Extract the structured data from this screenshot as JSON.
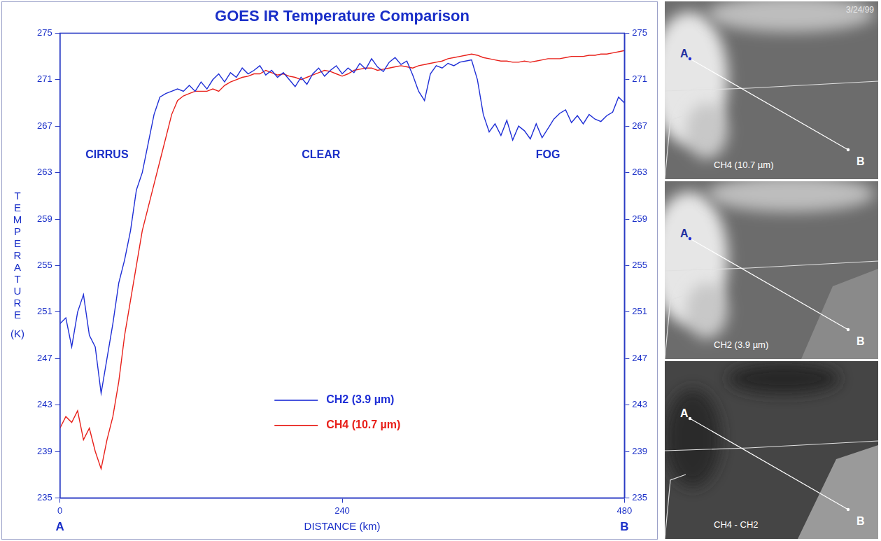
{
  "chart_data": {
    "type": "line",
    "title": "GOES IR Temperature Comparison",
    "xlabel": "DISTANCE (km)",
    "ylabel": "TEMPERATURE (K)",
    "x_end_labels": [
      "A",
      "B"
    ],
    "x": [
      0,
      5,
      10,
      15,
      20,
      25,
      30,
      35,
      40,
      45,
      50,
      55,
      60,
      65,
      70,
      75,
      80,
      85,
      90,
      95,
      100,
      105,
      110,
      115,
      120,
      125,
      130,
      135,
      140,
      145,
      150,
      155,
      160,
      165,
      170,
      175,
      180,
      185,
      190,
      195,
      200,
      205,
      210,
      215,
      220,
      225,
      230,
      235,
      240,
      245,
      250,
      255,
      260,
      265,
      270,
      275,
      280,
      285,
      290,
      295,
      300,
      305,
      310,
      315,
      320,
      325,
      330,
      335,
      340,
      345,
      350,
      355,
      360,
      365,
      370,
      375,
      380,
      385,
      390,
      395,
      400,
      405,
      410,
      415,
      420,
      425,
      430,
      435,
      440,
      445,
      450,
      455,
      460,
      465,
      470,
      475,
      480
    ],
    "series": [
      {
        "name": "CH2 (3.9 µm)",
        "color": "#1f2fd6",
        "values": [
          250,
          250.5,
          248,
          251,
          252.5,
          249,
          248,
          244,
          247,
          250,
          253.5,
          255.5,
          258,
          261.5,
          263,
          265.5,
          268,
          269.5,
          269.8,
          270,
          270.2,
          270,
          270.5,
          270,
          270.8,
          270.2,
          271,
          271.5,
          270.8,
          271.6,
          271.2,
          272,
          271.5,
          271.8,
          272.2,
          271.4,
          271.8,
          271.2,
          271.6,
          271,
          270.4,
          271.2,
          270.6,
          271.5,
          272,
          271.3,
          271.8,
          272.2,
          271.5,
          272,
          271.6,
          272.4,
          271.9,
          272.8,
          272.1,
          271.7,
          272.5,
          272.9,
          272.3,
          272.6,
          271.4,
          270,
          269.2,
          271.5,
          272.2,
          272,
          272.4,
          272.2,
          272.5,
          272.6,
          272.7,
          271,
          268,
          266.5,
          267.2,
          266.2,
          267.5,
          265.8,
          267,
          266.6,
          265.9,
          267.2,
          266,
          266.8,
          267.6,
          268.1,
          268.4,
          267.3,
          267.9,
          267.2,
          268,
          267.6,
          267.4,
          267.9,
          268.2,
          269.5,
          269
        ]
      },
      {
        "name": "CH4 (10.7 µm)",
        "color": "#e8201a",
        "values": [
          241,
          242,
          241.5,
          242.5,
          240,
          241,
          239,
          237.5,
          240,
          242,
          245,
          249,
          252,
          255,
          258,
          260,
          262,
          264,
          266,
          268,
          269.2,
          269.6,
          269.8,
          270,
          270,
          270,
          270.2,
          270,
          270.5,
          270.8,
          271,
          271.2,
          271.3,
          271.5,
          271.5,
          271.8,
          271.6,
          271.4,
          271.5,
          271.3,
          271.2,
          271,
          271.2,
          271.4,
          271.6,
          271.8,
          271.7,
          271.5,
          271.3,
          271.5,
          271.8,
          271.9,
          272,
          272,
          271.8,
          271.9,
          272,
          272.1,
          272.2,
          272.1,
          272,
          272.2,
          272.3,
          272.4,
          272.5,
          272.6,
          272.8,
          272.9,
          273,
          273.1,
          273.2,
          273.1,
          272.9,
          272.8,
          272.7,
          272.6,
          272.6,
          272.5,
          272.5,
          272.6,
          272.5,
          272.6,
          272.7,
          272.8,
          272.8,
          272.8,
          272.9,
          273,
          273,
          273,
          273.1,
          273.1,
          273.2,
          273.2,
          273.3,
          273.4,
          273.5
        ]
      }
    ],
    "xlim": [
      0,
      480
    ],
    "xticks": [
      0,
      240,
      480
    ],
    "ylim": [
      235,
      275
    ],
    "yticks": [
      235,
      239,
      243,
      247,
      251,
      255,
      259,
      263,
      267,
      271,
      275
    ],
    "y2lim": [
      235,
      275
    ],
    "y2ticks": [
      235,
      239,
      243,
      247,
      251,
      255,
      259,
      263,
      267,
      271,
      275
    ],
    "annotations": [
      {
        "text": "CIRRUS",
        "x": 40,
        "y": 264.5
      },
      {
        "text": "CLEAR",
        "x": 222,
        "y": 264.5
      },
      {
        "text": "FOG",
        "x": 415,
        "y": 264.5
      }
    ],
    "grid": false,
    "legend": "bottom"
  },
  "images": [
    {
      "caption": "CH4 (10.7 µm)",
      "date": "3/24/99",
      "start": "A",
      "end": "B"
    },
    {
      "caption": "CH2 (3.9 µm)",
      "start": "A",
      "end": "B"
    },
    {
      "caption": "CH4 - CH2",
      "start": "A",
      "end": "B"
    }
  ]
}
